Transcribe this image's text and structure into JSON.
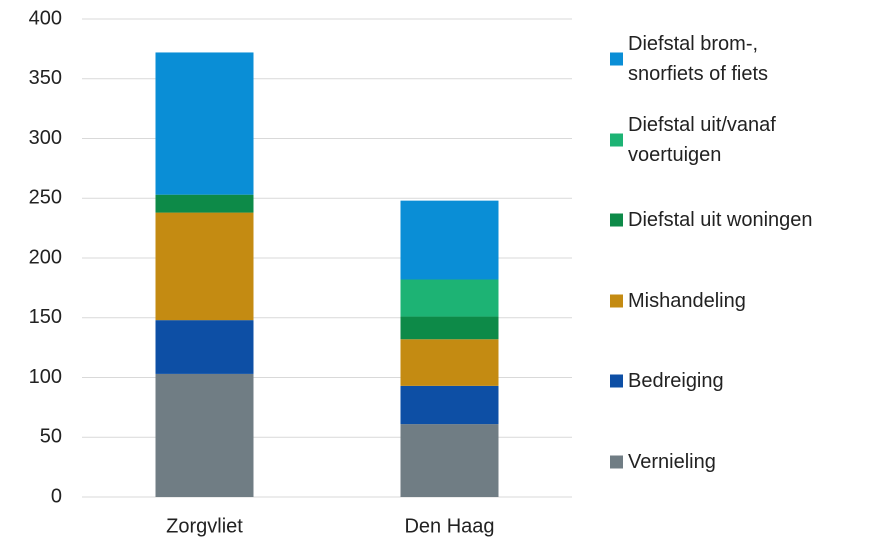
{
  "chart_data": {
    "type": "stacked_bar",
    "categories": [
      "Zorgvliet",
      "Den Haag"
    ],
    "series": [
      {
        "name": "Vernieling",
        "color": "#707d84",
        "values": [
          103,
          61
        ]
      },
      {
        "name": "Bedreiging",
        "color": "#0d4fa5",
        "values": [
          45,
          32
        ]
      },
      {
        "name": "Mishandeling",
        "color": "#c48b12",
        "values": [
          90,
          39
        ]
      },
      {
        "name": "Diefstal uit woningen",
        "color": "#0d8a48",
        "values": [
          15,
          19
        ]
      },
      {
        "name": "Diefstal uit/vanaf\nvoertuigen",
        "color": "#1db374",
        "values": [
          0,
          31
        ]
      },
      {
        "name": "Diefstal brom-,\nsnorfiets of fiets",
        "color": "#0a8ed6",
        "values": [
          119,
          66
        ]
      }
    ],
    "ylim": [
      0,
      400
    ],
    "yticks": [
      0,
      50,
      100,
      150,
      200,
      250,
      300,
      350,
      400
    ],
    "grid": true,
    "legend": "right"
  }
}
